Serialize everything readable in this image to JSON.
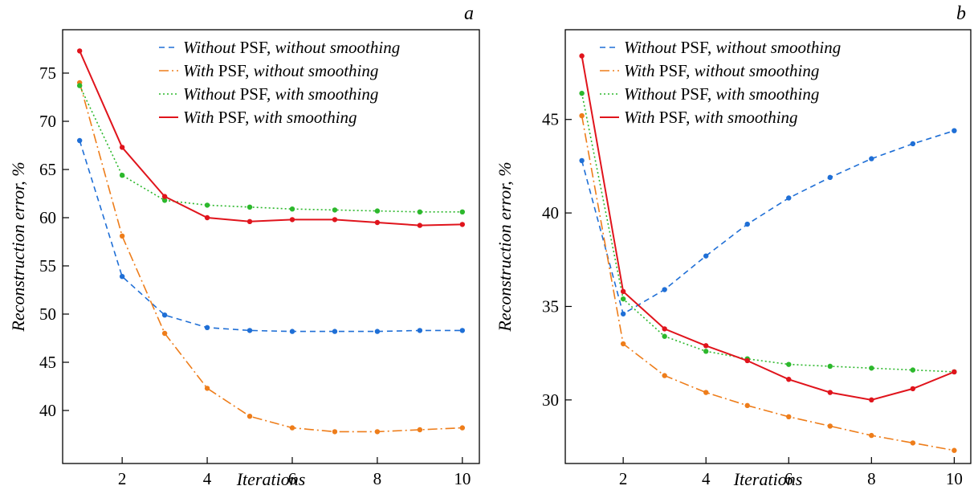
{
  "chart_data": [
    {
      "type": "line",
      "panel_label": "a",
      "xlabel": "Iterations",
      "ylabel": "Reconstruction error, %",
      "xlim": [
        0.6,
        10.4
      ],
      "ylim": [
        34.5,
        79.5
      ],
      "xticks": [
        2,
        4,
        6,
        8,
        10
      ],
      "yticks": [
        40,
        45,
        50,
        55,
        60,
        65,
        70,
        75
      ],
      "grid": false,
      "legend_position": "top-right",
      "x": [
        1,
        2,
        3,
        4,
        5,
        6,
        7,
        8,
        9,
        10
      ],
      "series": [
        {
          "legend": [
            {
              "text": "Without",
              "italic": true
            },
            {
              "text": " PSF, ",
              "italic": false
            },
            {
              "text": "without smoothing",
              "italic": true
            }
          ],
          "color": "#1f6fd6",
          "dash": "7,5",
          "values": [
            68.0,
            53.9,
            49.9,
            48.6,
            48.3,
            48.2,
            48.2,
            48.2,
            48.3,
            48.3
          ]
        },
        {
          "legend": [
            {
              "text": "With",
              "italic": true
            },
            {
              "text": " PSF, ",
              "italic": false
            },
            {
              "text": "without smoothing",
              "italic": true
            }
          ],
          "color": "#ee7d1a",
          "dash": "12,4,2,4",
          "values": [
            74.0,
            58.1,
            48.0,
            42.3,
            39.4,
            38.2,
            37.8,
            37.8,
            38.0,
            38.2
          ]
        },
        {
          "legend": [
            {
              "text": "Without",
              "italic": true
            },
            {
              "text": " PSF, ",
              "italic": false
            },
            {
              "text": "with smoothing",
              "italic": true
            }
          ],
          "color": "#2cb82c",
          "dash": "2,3",
          "values": [
            73.7,
            64.4,
            61.8,
            61.3,
            61.1,
            60.9,
            60.8,
            60.7,
            60.6,
            60.6
          ]
        },
        {
          "legend": [
            {
              "text": "With",
              "italic": true
            },
            {
              "text": " PSF, ",
              "italic": false
            },
            {
              "text": "with smoothing",
              "italic": true
            }
          ],
          "color": "#e0141c",
          "dash": "",
          "values": [
            77.3,
            67.3,
            62.2,
            60.0,
            59.6,
            59.8,
            59.8,
            59.5,
            59.2,
            59.3
          ]
        }
      ]
    },
    {
      "type": "line",
      "panel_label": "b",
      "xlabel": "Iterations",
      "ylabel": "Reconstruction error, %",
      "xlim": [
        0.6,
        10.4
      ],
      "ylim": [
        26.6,
        49.8
      ],
      "xticks": [
        2,
        4,
        6,
        8,
        10
      ],
      "yticks": [
        30,
        35,
        40,
        45
      ],
      "grid": false,
      "legend_position": "top-right",
      "x": [
        1,
        2,
        3,
        4,
        5,
        6,
        7,
        8,
        9,
        10
      ],
      "series": [
        {
          "legend": [
            {
              "text": "Without",
              "italic": true
            },
            {
              "text": " PSF, ",
              "italic": false
            },
            {
              "text": "without smoothing",
              "italic": true
            }
          ],
          "color": "#1f6fd6",
          "dash": "7,5",
          "values": [
            42.8,
            34.6,
            35.9,
            37.7,
            39.4,
            40.8,
            41.9,
            42.9,
            43.7,
            44.4
          ]
        },
        {
          "legend": [
            {
              "text": "With",
              "italic": true
            },
            {
              "text": " PSF, ",
              "italic": false
            },
            {
              "text": "without smoothing",
              "italic": true
            }
          ],
          "color": "#ee7d1a",
          "dash": "12,4,2,4",
          "values": [
            45.2,
            33.0,
            31.3,
            30.4,
            29.7,
            29.1,
            28.6,
            28.1,
            27.7,
            27.3
          ]
        },
        {
          "legend": [
            {
              "text": "Without",
              "italic": true
            },
            {
              "text": " PSF, ",
              "italic": false
            },
            {
              "text": "with smoothing",
              "italic": true
            }
          ],
          "color": "#2cb82c",
          "dash": "2,3",
          "values": [
            46.4,
            35.4,
            33.4,
            32.6,
            32.2,
            31.9,
            31.8,
            31.7,
            31.6,
            31.5
          ]
        },
        {
          "legend": [
            {
              "text": "With",
              "italic": true
            },
            {
              "text": " PSF, ",
              "italic": false
            },
            {
              "text": "with smoothing",
              "italic": true
            }
          ],
          "color": "#e0141c",
          "dash": "",
          "values": [
            48.4,
            35.8,
            33.8,
            32.9,
            32.1,
            31.1,
            30.4,
            30.0,
            30.6,
            31.5
          ]
        }
      ]
    }
  ]
}
